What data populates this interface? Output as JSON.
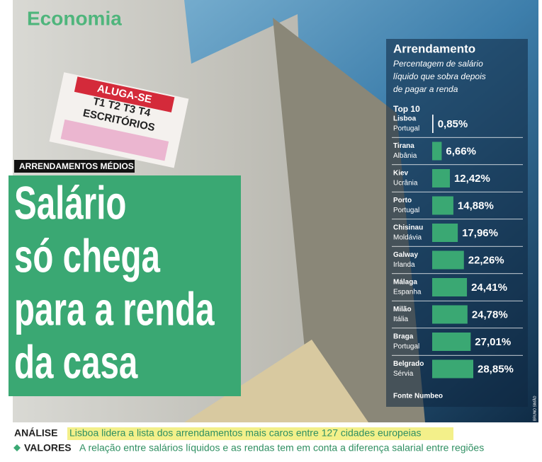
{
  "section": "Economia",
  "photo_sign": {
    "lines": [
      "ALUGA-SE",
      "T1 T2 T3 T4",
      "ESCRITÓRIOS"
    ]
  },
  "kicker": "ARRENDAMENTOS MÉDIOS",
  "headline": [
    "Salário",
    "só chega",
    "para a renda",
    "da casa"
  ],
  "chart_data": {
    "type": "bar",
    "orientation": "horizontal",
    "title": "Arrendamento",
    "subtitle": [
      "Percentagem de salário",
      "líquido que sobra depois",
      "de pagar a renda"
    ],
    "label": "Top 10",
    "categories": [
      "Lisboa",
      "Tirana",
      "Kiev",
      "Porto",
      "Chisinau",
      "Galway",
      "Málaga",
      "Milão",
      "Braga",
      "Belgrado"
    ],
    "countries": [
      "Portugal",
      "Albânia",
      "Ucrânia",
      "Portugal",
      "Moldávia",
      "Irlanda",
      "Espanha",
      "Itália",
      "Portugal",
      "Sérvia"
    ],
    "values": [
      0.85,
      6.66,
      12.42,
      14.88,
      17.96,
      22.26,
      24.41,
      24.78,
      27.01,
      28.85
    ],
    "value_labels": [
      "0,85%",
      "6,66%",
      "12,42%",
      "14,88%",
      "17,96%",
      "22,26%",
      "24,41%",
      "24,78%",
      "27,01%",
      "28,85%"
    ],
    "color": "#3aa873",
    "source": "Fonte Numbeo"
  },
  "photo_credit": "BRUNO SIMÃO",
  "footer": [
    {
      "label": "ANÁLISE",
      "text": "Lisboa lidera a lista dos arrendamentos mais caros entre 127 cidades europeias"
    },
    {
      "label": "VALORES",
      "text": "A relação entre salários líquidos e as rendas tem em conta a diferença salarial entre regiões"
    }
  ]
}
